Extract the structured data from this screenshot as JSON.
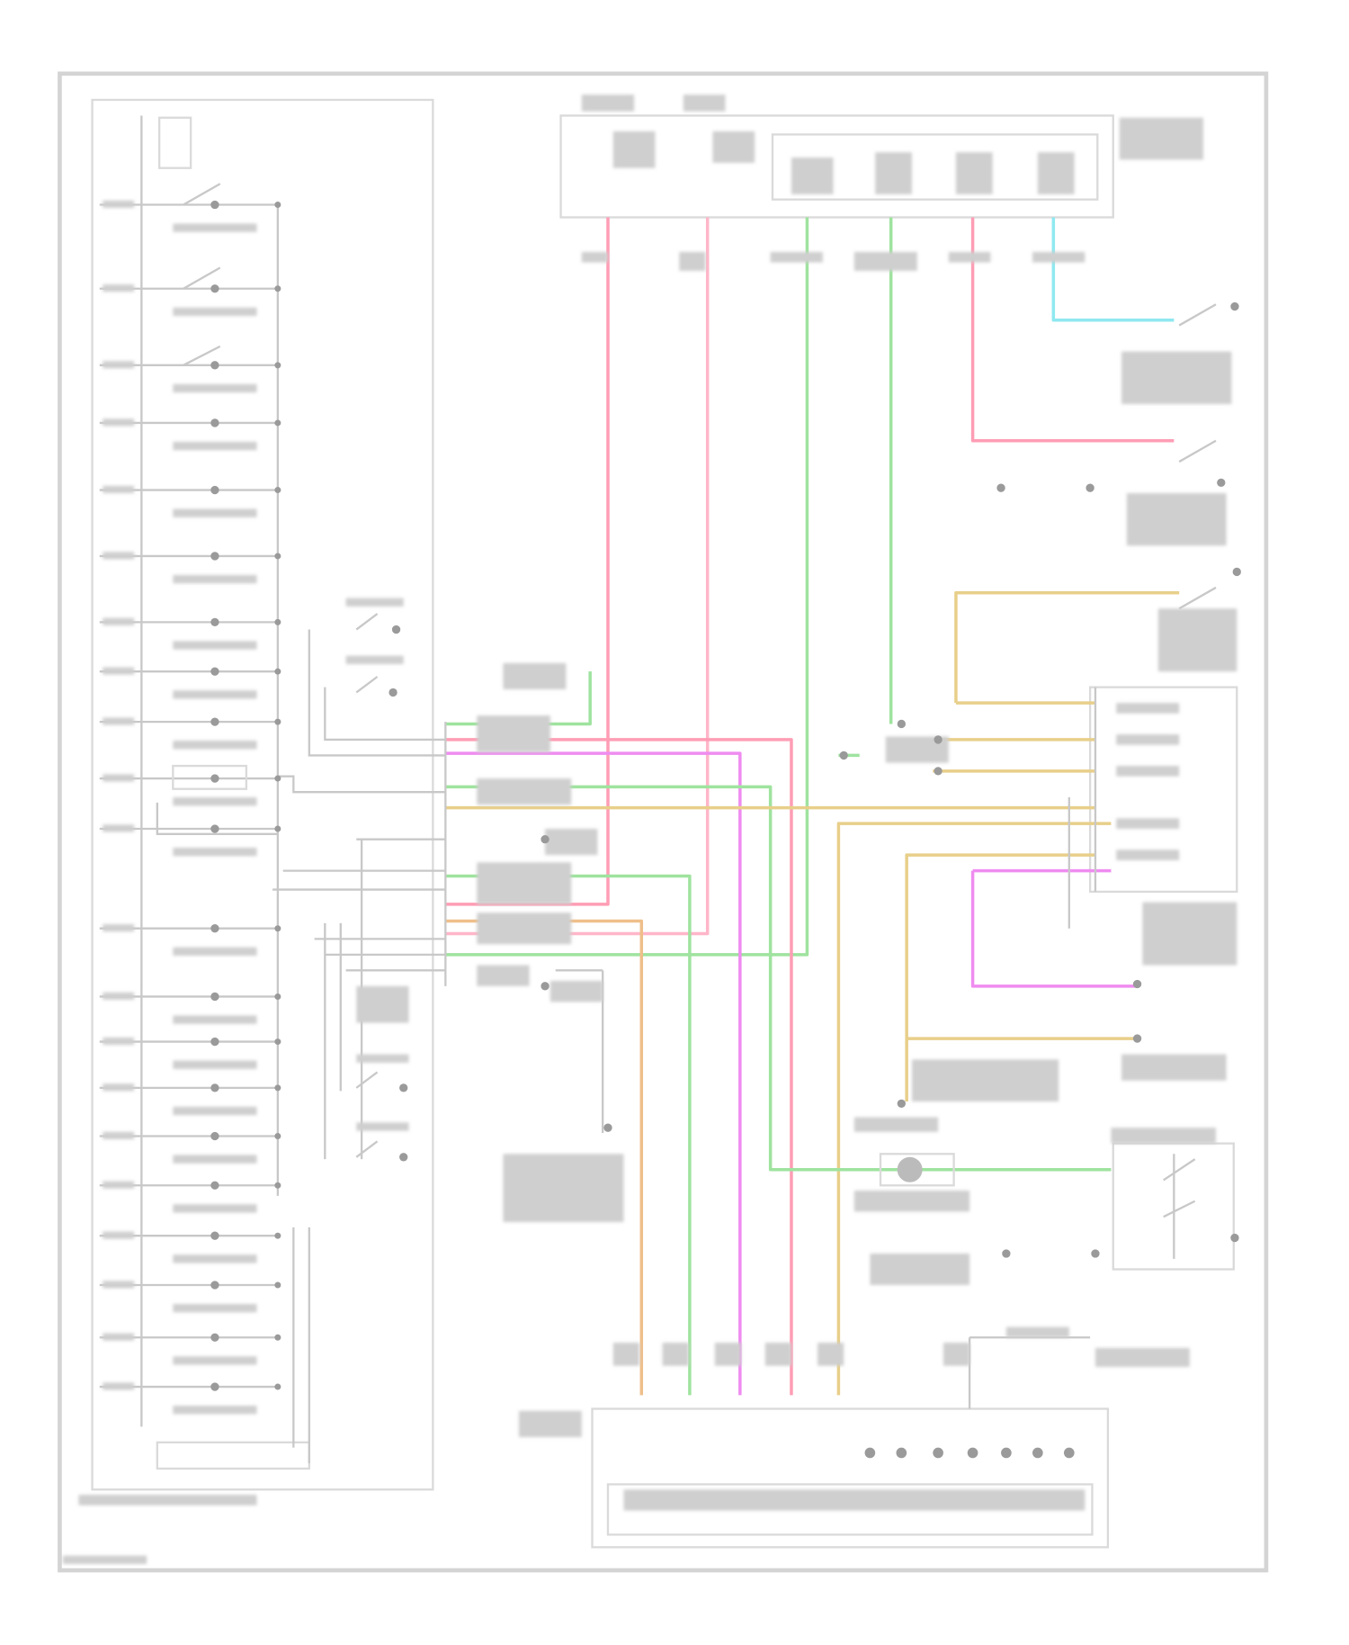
{
  "diagram": {
    "type": "wiring-schematic",
    "text_legibility": "blurred",
    "colors": {
      "pink": "#ff9db5",
      "light_pink": "#ffb6c8",
      "green": "#9fe39f",
      "cyan": "#8fe8f0",
      "magenta": "#ef8cf0",
      "tan": "#e8cf8a",
      "orange": "#efbf8a",
      "gray": "#9a9a9a",
      "outline": "#d4d4d4"
    }
  }
}
